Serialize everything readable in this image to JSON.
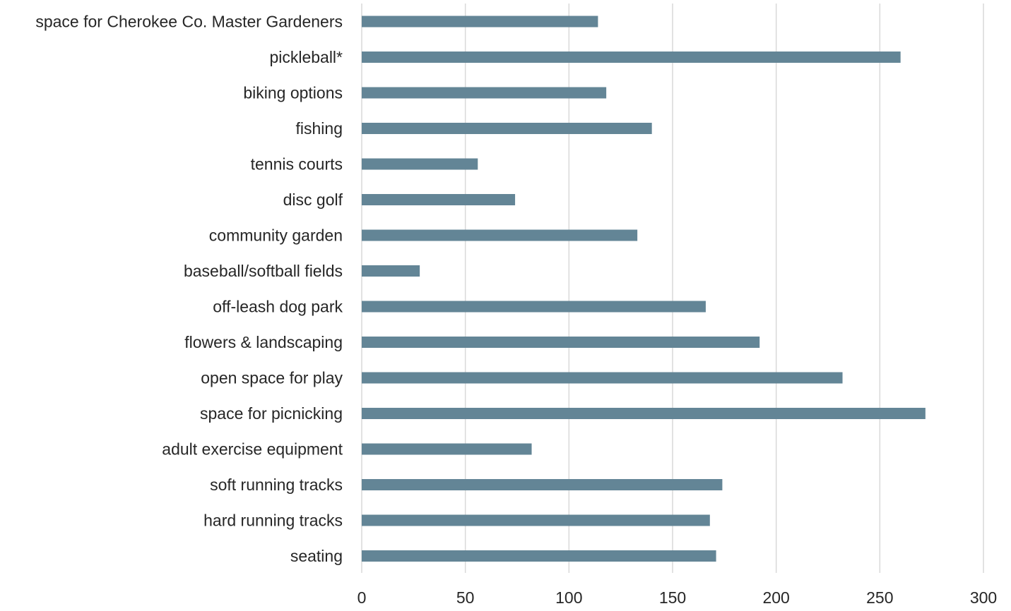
{
  "chart_data": {
    "type": "bar",
    "orientation": "horizontal",
    "categories": [
      "space for Cherokee Co. Master Gardeners",
      "pickleball*",
      "biking options",
      "fishing",
      "tennis courts",
      "disc golf",
      "community garden",
      "baseball/softball fields",
      "off-leash dog park",
      "flowers & landscaping",
      "open space for play",
      "space for picnicking",
      "adult exercise equipment",
      "soft running tracks",
      "hard running tracks",
      "seating"
    ],
    "values": [
      114,
      260,
      118,
      140,
      56,
      74,
      133,
      28,
      166,
      192,
      232,
      272,
      82,
      174,
      168,
      171
    ],
    "xlim": [
      0,
      300
    ],
    "xticks": [
      "0",
      "50",
      "100",
      "150",
      "200",
      "250",
      "300"
    ],
    "tick_values": [
      0,
      50,
      100,
      150,
      200,
      250,
      300
    ],
    "title": "",
    "xlabel": "",
    "ylabel": "",
    "grid": "vertical",
    "legend": "none",
    "bar_color": "#638596",
    "grid_color": "#d9d9d9"
  }
}
